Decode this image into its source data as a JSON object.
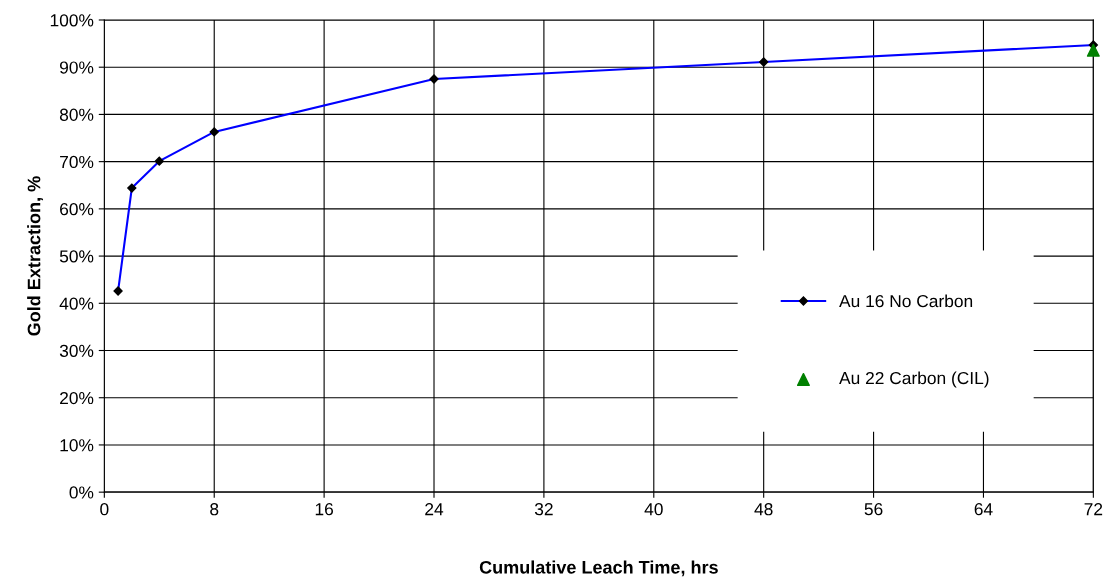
{
  "chart_data": {
    "type": "line",
    "xlabel": "Cumulative Leach Time, hrs",
    "ylabel": "Gold Extraction, %",
    "xlim": [
      0,
      72
    ],
    "xticks": [
      0,
      8,
      16,
      24,
      32,
      40,
      48,
      56,
      64,
      72
    ],
    "ylim": [
      0,
      100
    ],
    "yticks": [
      {
        "value": 0,
        "label": "0%"
      },
      {
        "value": 10,
        "label": "10%"
      },
      {
        "value": 20,
        "label": "20%"
      },
      {
        "value": 30,
        "label": "30%"
      },
      {
        "value": 40,
        "label": "40%"
      },
      {
        "value": 50,
        "label": "50%"
      },
      {
        "value": 60,
        "label": "60%"
      },
      {
        "value": 70,
        "label": "70%"
      },
      {
        "value": 80,
        "label": "80%"
      },
      {
        "value": 90,
        "label": "90%"
      },
      {
        "value": 100,
        "label": "100%"
      }
    ],
    "grid": true,
    "legend": "center right",
    "series": [
      {
        "name": "Au 16 No Carbon",
        "marker": "diamond",
        "color": "#0000ff",
        "x": [
          1,
          2,
          4,
          8,
          24,
          48,
          72
        ],
        "values": [
          42.6,
          64.4,
          70.1,
          76.3,
          87.5,
          91.1,
          94.7
        ]
      },
      {
        "name": "Au 22 Carbon (CIL)",
        "type": "scatter",
        "marker": "triangle",
        "color": "#008000",
        "x": [
          72
        ],
        "values": [
          93.6
        ]
      }
    ]
  }
}
